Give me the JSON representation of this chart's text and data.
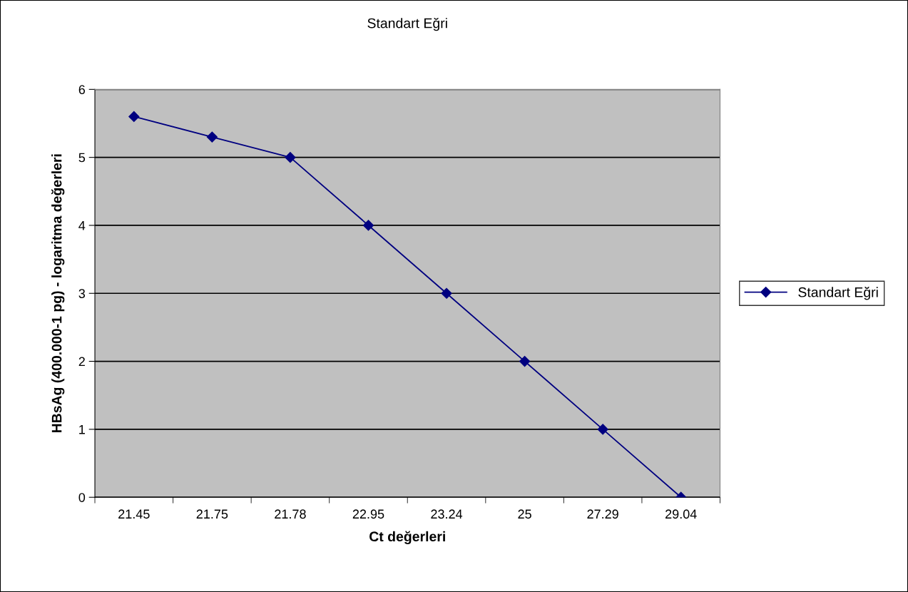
{
  "chart_data": {
    "type": "line",
    "title": "Standart Eğri",
    "xlabel": "Ct değerleri",
    "ylabel": "HBsAg (400.000-1 pg) - logaritma değerleri",
    "categories": [
      "21.45",
      "21.75",
      "21.78",
      "22.95",
      "23.24",
      "25",
      "27.29",
      "29.04"
    ],
    "series": [
      {
        "name": "Standart Eğri",
        "color": "#000080",
        "values": [
          5.6,
          5.3,
          5.0,
          4,
          3,
          2,
          1,
          0
        ]
      }
    ],
    "ylim": [
      0,
      6
    ],
    "yticks": [
      0,
      1,
      2,
      3,
      4,
      5,
      6
    ],
    "grid": "y",
    "legend": "right",
    "marker": "diamond",
    "line_style": "solid"
  }
}
